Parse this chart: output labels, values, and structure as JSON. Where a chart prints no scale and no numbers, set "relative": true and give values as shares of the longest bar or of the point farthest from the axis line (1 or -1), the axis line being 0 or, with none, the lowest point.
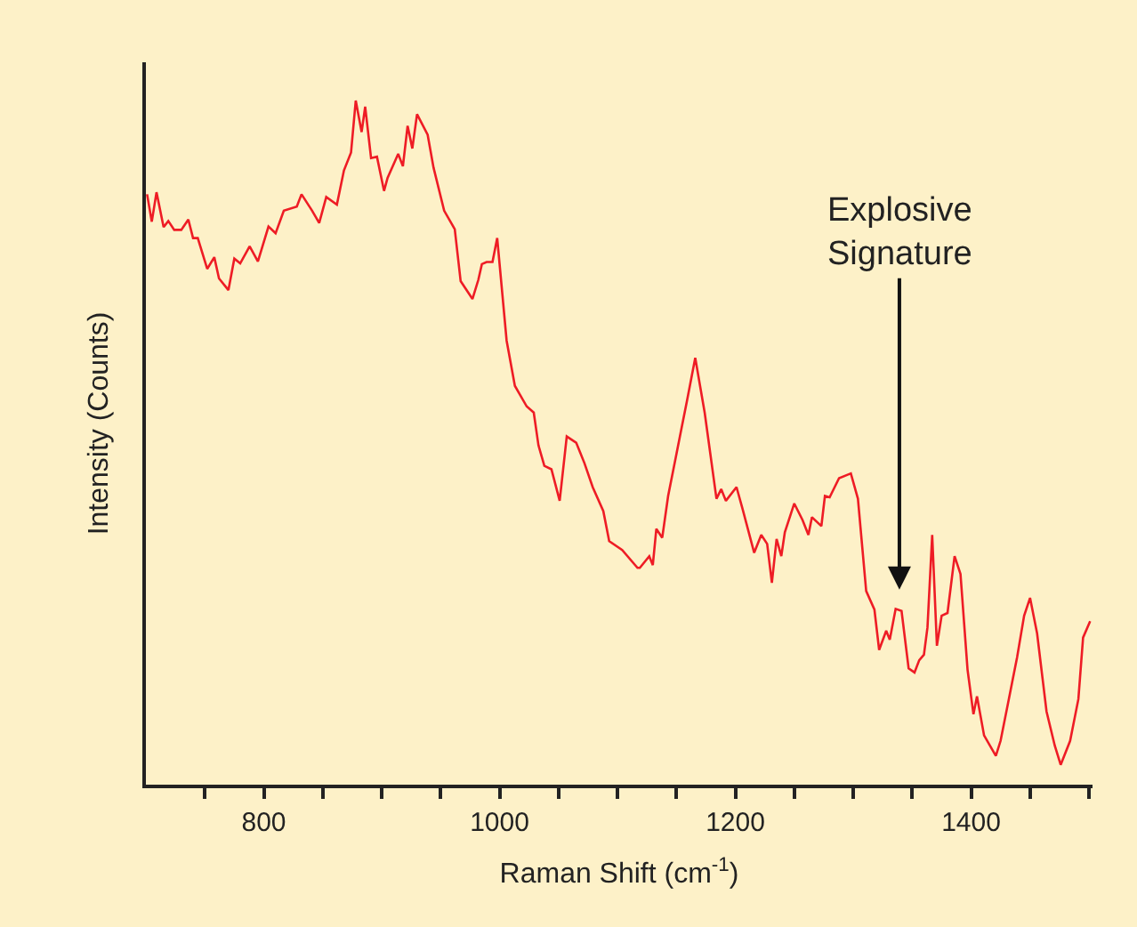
{
  "chart_data": {
    "type": "line",
    "relative": true,
    "xlabel": "Raman Shift (cm$^{-1}$)",
    "ylabel": "Intensity (Counts)",
    "xlim": [
      700,
      1503
    ],
    "xticks": [
      {
        "value": 750,
        "label": null
      },
      800,
      {
        "value": 850,
        "label": null
      },
      {
        "value": 900,
        "label": null
      },
      {
        "value": 950,
        "label": null
      },
      1000,
      {
        "value": 1050,
        "label": null
      },
      {
        "value": 1100,
        "label": null
      },
      {
        "value": 1150,
        "label": null
      },
      1200,
      {
        "value": 1250,
        "label": null
      },
      {
        "value": 1300,
        "label": null
      },
      {
        "value": 1350,
        "label": null
      },
      1400,
      {
        "value": 1450,
        "label": null
      },
      {
        "value": 1500,
        "label": null
      }
    ],
    "grid": false,
    "annotations": [
      "Explosive\nSignature"
    ],
    "series": [
      {
        "color": "#ee1c25",
        "x": [
          701,
          705,
          709,
          715,
          719,
          724,
          730,
          736,
          740,
          744,
          752,
          758,
          762,
          770,
          775,
          780,
          788,
          795,
          804,
          810,
          817,
          828,
          832,
          841,
          847,
          853,
          862,
          868,
          874,
          878,
          883,
          886,
          891,
          896,
          902,
          905,
          914,
          918,
          922,
          926,
          930,
          939,
          944,
          953,
          962,
          967,
          977,
          982,
          985,
          989,
          994,
          998,
          1006,
          1013,
          1023,
          1029,
          1033,
          1038,
          1044,
          1051,
          1057,
          1065,
          1072,
          1079,
          1088,
          1093,
          1104,
          1117,
          1119,
          1127,
          1130,
          1133,
          1138,
          1143,
          1153,
          1159,
          1166,
          1174,
          1184,
          1188,
          1192,
          1201,
          1206,
          1216,
          1222,
          1227,
          1231,
          1235,
          1239,
          1242,
          1250,
          1257,
          1262,
          1265,
          1273,
          1276,
          1280,
          1288,
          1298,
          1304,
          1311,
          1318,
          1322,
          1328,
          1331,
          1336,
          1341,
          1347,
          1352,
          1356,
          1360,
          1363,
          1367,
          1371,
          1375,
          1380,
          1386,
          1391,
          1397,
          1402,
          1405,
          1411,
          1421,
          1425,
          1432,
          1439,
          1445,
          1450,
          1456,
          1464,
          1471,
          1476,
          1484,
          1491,
          1495,
          1501
        ],
        "values": [
          0.863,
          0.823,
          0.866,
          0.815,
          0.824,
          0.811,
          0.811,
          0.826,
          0.799,
          0.799,
          0.754,
          0.771,
          0.74,
          0.723,
          0.769,
          0.762,
          0.787,
          0.765,
          0.816,
          0.806,
          0.839,
          0.845,
          0.863,
          0.839,
          0.821,
          0.859,
          0.848,
          0.898,
          0.924,
          1,
          0.954,
          0.991,
          0.916,
          0.918,
          0.868,
          0.887,
          0.922,
          0.904,
          0.963,
          0.93,
          0.98,
          0.95,
          0.902,
          0.839,
          0.812,
          0.736,
          0.71,
          0.738,
          0.761,
          0.764,
          0.764,
          0.799,
          0.649,
          0.583,
          0.553,
          0.544,
          0.496,
          0.466,
          0.461,
          0.415,
          0.509,
          0.5,
          0.47,
          0.435,
          0.4,
          0.356,
          0.343,
          0.317,
          0.317,
          0.334,
          0.321,
          0.374,
          0.361,
          0.422,
          0.509,
          0.561,
          0.624,
          0.544,
          0.418,
          0.432,
          0.415,
          0.435,
          0.404,
          0.339,
          0.365,
          0.352,
          0.295,
          0.359,
          0.334,
          0.369,
          0.411,
          0.387,
          0.365,
          0.391,
          0.378,
          0.422,
          0.42,
          0.448,
          0.455,
          0.418,
          0.283,
          0.256,
          0.197,
          0.225,
          0.212,
          0.257,
          0.254,
          0.17,
          0.164,
          0.182,
          0.19,
          0.23,
          0.365,
          0.203,
          0.247,
          0.251,
          0.334,
          0.308,
          0.168,
          0.103,
          0.129,
          0.072,
          0.042,
          0.064,
          0.125,
          0.186,
          0.247,
          0.273,
          0.221,
          0.107,
          0.057,
          0.029,
          0.064,
          0.125,
          0.215,
          0.239
        ]
      }
    ]
  }
}
